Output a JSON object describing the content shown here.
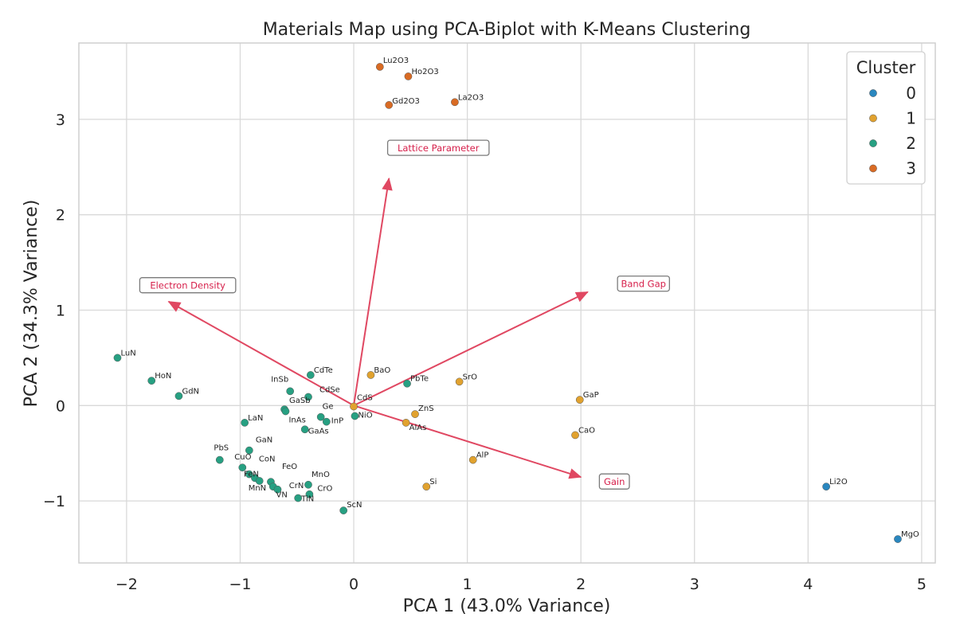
{
  "chart_data": {
    "type": "scatter",
    "title": "Materials Map using PCA-Biplot with K-Means Clustering",
    "xlabel": "PCA 1  (43.0% Variance)",
    "ylabel": "PCA 2  (34.3% Variance)",
    "xlim": [
      -2.42,
      5.12
    ],
    "ylim": [
      -1.65,
      3.8
    ],
    "xticks": [
      -2,
      -1,
      0,
      1,
      2,
      3,
      4,
      5
    ],
    "xtick_labels": [
      "−2",
      "−1",
      "0",
      "1",
      "2",
      "3",
      "4",
      "5"
    ],
    "yticks": [
      -1,
      0,
      1,
      2,
      3
    ],
    "ytick_labels": [
      "−1",
      "0",
      "1",
      "2",
      "3"
    ],
    "grid": true,
    "legend": {
      "title": "Cluster",
      "placement": "top-right",
      "entries": [
        "0",
        "1",
        "2",
        "3"
      ]
    },
    "cluster_colors": {
      "0": "#2a87bf",
      "1": "#e1a22f",
      "2": "#27a082",
      "3": "#d96b24"
    },
    "vector_color": "#e04862",
    "points": [
      {
        "label": "Lu2O3",
        "x": 0.23,
        "y": 3.55,
        "cluster": 3
      },
      {
        "label": "Ho2O3",
        "x": 0.48,
        "y": 3.45,
        "cluster": 3
      },
      {
        "label": "Gd2O3",
        "x": 0.31,
        "y": 3.15,
        "cluster": 3
      },
      {
        "label": "La2O3",
        "x": 0.89,
        "y": 3.18,
        "cluster": 3
      },
      {
        "label": "Li2O",
        "x": 4.16,
        "y": -0.85,
        "cluster": 0
      },
      {
        "label": "MgO",
        "x": 4.79,
        "y": -1.4,
        "cluster": 0
      },
      {
        "label": "BaO",
        "x": 0.15,
        "y": 0.32,
        "cluster": 1
      },
      {
        "label": "SrO",
        "x": 0.93,
        "y": 0.25,
        "cluster": 1
      },
      {
        "label": "GaP",
        "x": 1.99,
        "y": 0.06,
        "cluster": 1
      },
      {
        "label": "CdS",
        "x": 0.0,
        "y": -0.01,
        "cluster": 1
      },
      {
        "label": "ZnS",
        "x": 0.54,
        "y": -0.09,
        "cluster": 1
      },
      {
        "label": "AlAs",
        "x": 0.46,
        "y": -0.18,
        "cluster": 1
      },
      {
        "label": "CaO",
        "x": 1.95,
        "y": -0.31,
        "cluster": 1
      },
      {
        "label": "AlP",
        "x": 1.05,
        "y": -0.57,
        "cluster": 1
      },
      {
        "label": "Si",
        "x": 0.64,
        "y": -0.85,
        "cluster": 1
      },
      {
        "label": "PbTe",
        "x": 0.47,
        "y": 0.23,
        "cluster": 2
      },
      {
        "label": "LuN",
        "x": -2.08,
        "y": 0.5,
        "cluster": 2
      },
      {
        "label": "HoN",
        "x": -1.78,
        "y": 0.26,
        "cluster": 2
      },
      {
        "label": "GdN",
        "x": -1.54,
        "y": 0.1,
        "cluster": 2
      },
      {
        "label": "CdTe",
        "x": -0.38,
        "y": 0.32,
        "cluster": 2
      },
      {
        "label": "InSb",
        "x": -0.56,
        "y": 0.15,
        "cluster": 2
      },
      {
        "label": "CdSe",
        "x": -0.4,
        "y": 0.09,
        "cluster": 2
      },
      {
        "label": "GaSb",
        "x": -0.61,
        "y": -0.04,
        "cluster": 2
      },
      {
        "label": "InAs",
        "x": -0.6,
        "y": -0.06,
        "cluster": 2
      },
      {
        "label": "Ge",
        "x": -0.29,
        "y": -0.12,
        "cluster": 2
      },
      {
        "label": "InP",
        "x": -0.24,
        "y": -0.17,
        "cluster": 2
      },
      {
        "label": "NiO",
        "x": 0.01,
        "y": -0.11,
        "cluster": 2
      },
      {
        "label": "LaN",
        "x": -0.96,
        "y": -0.18,
        "cluster": 2
      },
      {
        "label": "GaAs",
        "x": -0.43,
        "y": -0.25,
        "cluster": 2
      },
      {
        "label": "GaN",
        "x": -0.92,
        "y": -0.47,
        "cluster": 2
      },
      {
        "label": "PbS",
        "x": -1.18,
        "y": -0.57,
        "cluster": 2
      },
      {
        "label": "CuO",
        "x": -0.98,
        "y": -0.65,
        "cluster": 2
      },
      {
        "label": "CoN",
        "x": -0.92,
        "y": -0.72,
        "cluster": 2
      },
      {
        "label": "FeN",
        "x": -0.87,
        "y": -0.76,
        "cluster": 2
      },
      {
        "label": "FeO",
        "x": -0.73,
        "y": -0.8,
        "cluster": 2
      },
      {
        "label": "MnN",
        "x": -0.83,
        "y": -0.79,
        "cluster": 2
      },
      {
        "label": "CrN",
        "x": -0.71,
        "y": -0.85,
        "cluster": 2
      },
      {
        "label": "VN",
        "x": -0.67,
        "y": -0.88,
        "cluster": 2
      },
      {
        "label": "MnO",
        "x": -0.4,
        "y": -0.83,
        "cluster": 2
      },
      {
        "label": "CrO",
        "x": -0.39,
        "y": -0.93,
        "cluster": 2
      },
      {
        "label": "TiN",
        "x": -0.49,
        "y": -0.97,
        "cluster": 2
      },
      {
        "label": "ScN",
        "x": -0.09,
        "y": -1.1,
        "cluster": 2
      }
    ],
    "vectors": [
      {
        "label": "Lattice Parameter",
        "x": 0.31,
        "y": 2.38
      },
      {
        "label": "Electron Density",
        "x": -1.63,
        "y": 1.09
      },
      {
        "label": "Band Gap",
        "x": 2.06,
        "y": 1.19
      },
      {
        "label": "Gain",
        "x": 2.0,
        "y": -0.75
      }
    ]
  }
}
